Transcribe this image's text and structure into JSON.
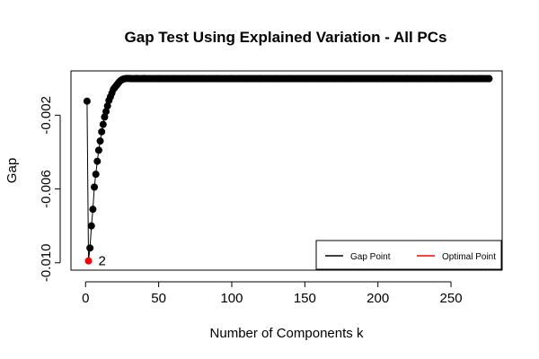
{
  "chart_data": {
    "type": "scatter",
    "title": "Gap Test Using Explained Variation - All PCs",
    "xlabel": "Number of Components k",
    "ylabel": "Gap",
    "xlim": [
      -10,
      285
    ],
    "ylim": [
      -0.0104,
      0.0004
    ],
    "x_ticks": [
      0,
      50,
      100,
      150,
      200,
      250
    ],
    "x_tick_labels": [
      "0",
      "50",
      "100",
      "150",
      "200",
      "250"
    ],
    "y_ticks": [
      -0.01,
      -0.006,
      -0.002
    ],
    "y_tick_labels": [
      "-0.010",
      "-0.006",
      "-0.002"
    ],
    "grid": false,
    "legend": {
      "position": "bottom-right",
      "entries": [
        {
          "label": "Gap Point",
          "color": "#000000"
        },
        {
          "label": "Optimal Point",
          "color": "#ff0000"
        }
      ]
    },
    "series": [
      {
        "name": "Gap Point",
        "color": "#000000",
        "x": [
          1,
          2,
          3,
          4,
          5,
          6,
          7,
          8,
          9,
          10,
          11,
          12,
          13,
          14,
          15,
          16,
          17,
          18,
          19,
          20,
          21,
          22,
          23,
          24,
          25,
          26,
          27,
          28,
          29,
          30,
          35,
          40,
          50,
          60,
          70,
          80,
          90,
          100,
          110,
          120,
          130,
          140,
          150,
          160,
          170,
          180,
          190,
          200,
          210,
          220,
          230,
          240,
          250,
          260,
          270,
          276
        ],
        "y": [
          -0.00124,
          -0.0099,
          -0.0092,
          -0.008,
          -0.0071,
          -0.0059,
          -0.0052,
          -0.0045,
          -0.0039,
          -0.0034,
          -0.0029,
          -0.0025,
          -0.0021,
          -0.0018,
          -0.0015,
          -0.0012,
          -0.001,
          -0.0008,
          -0.0006,
          -0.0005,
          -0.0004,
          -0.0003,
          -0.0002,
          -0.00012,
          -7e-05,
          -4e-05,
          -2e-05,
          -1e-05,
          -1e-05,
          -1e-05,
          -1e-05,
          -1e-05,
          -2e-05,
          -2e-05,
          -2e-05,
          -2e-05,
          -2e-05,
          -2e-05,
          -2e-05,
          -2e-05,
          -2e-05,
          -2e-05,
          -2e-05,
          -2e-05,
          -2e-05,
          -2e-05,
          -2e-05,
          -2e-05,
          -2e-05,
          -2e-05,
          -2e-05,
          -2e-05,
          -2e-05,
          -2e-05,
          -2e-05,
          -2e-05
        ]
      },
      {
        "name": "Optimal Point",
        "color": "#ff0000",
        "x": [
          2
        ],
        "y": [
          -0.0099
        ]
      }
    ],
    "annotations": [
      {
        "text": "2",
        "x": 2,
        "y": -0.0099
      }
    ]
  }
}
